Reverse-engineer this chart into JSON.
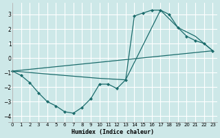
{
  "xlabel": "Humidex (Indice chaleur)",
  "bg_color": "#cde8e8",
  "grid_color": "#ffffff",
  "line_color": "#1a6b6b",
  "xlim": [
    -0.5,
    23.5
  ],
  "ylim": [
    -4.4,
    3.8
  ],
  "xticks": [
    0,
    1,
    2,
    3,
    4,
    5,
    6,
    7,
    8,
    9,
    10,
    11,
    12,
    13,
    14,
    15,
    16,
    17,
    18,
    19,
    20,
    21,
    22,
    23
  ],
  "yticks": [
    -4,
    -3,
    -2,
    -1,
    0,
    1,
    2,
    3
  ],
  "line1_x": [
    0,
    1,
    2,
    3,
    4,
    5,
    6,
    7,
    8,
    9,
    10,
    11,
    12,
    13,
    14,
    15,
    16,
    17,
    18,
    19,
    20,
    21,
    22,
    23
  ],
  "line1_y": [
    -0.9,
    -1.2,
    -1.7,
    -2.4,
    -3.0,
    -3.3,
    -3.7,
    -3.8,
    -3.4,
    -2.8,
    -1.8,
    -1.8,
    -2.1,
    -1.5,
    2.9,
    3.1,
    3.3,
    3.3,
    3.0,
    2.1,
    1.5,
    1.2,
    1.0,
    0.5
  ],
  "line2_x": [
    0,
    23
  ],
  "line2_y": [
    -0.9,
    0.5
  ],
  "line3_x": [
    0,
    10,
    13,
    17,
    19,
    21,
    23
  ],
  "line3_y": [
    -0.9,
    -1.4,
    -1.5,
    3.3,
    2.1,
    1.5,
    0.5
  ]
}
